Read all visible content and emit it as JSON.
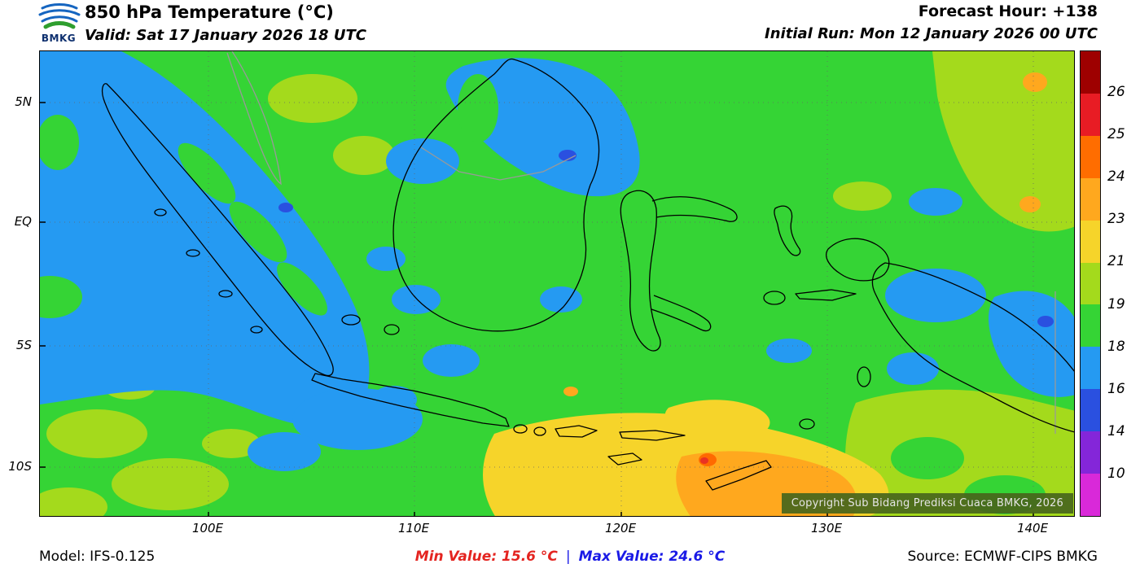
{
  "header": {
    "logo": "BMKG",
    "title": "850 hPa Temperature (°C)",
    "valid": "Valid: Sat 17 January 2026 18 UTC",
    "forecast_hour": "Forecast Hour: +138",
    "initial_run": "Initial Run: Mon 12 January 2026 00 UTC"
  },
  "map": {
    "lat_labels": [
      "5N",
      "EQ",
      "5S",
      "10S"
    ],
    "lon_labels": [
      "100E",
      "110E",
      "120E",
      "130E",
      "140E"
    ],
    "copyright": "Copyright Sub Bidang Prediksi Cuaca BMKG, 2026"
  },
  "colorbar": {
    "unit": "°C",
    "tick_labels": [
      "26",
      "25",
      "24",
      "23",
      "21",
      "19",
      "18",
      "16",
      "14",
      "10"
    ],
    "segment_colors": [
      "#9e0000",
      "#e81c24",
      "#ff6d00",
      "#ffa81e",
      "#f6d42a",
      "#a4da1c",
      "#35d435",
      "#259af2",
      "#2a50e0",
      "#8426d9",
      "#d929d9"
    ]
  },
  "footer": {
    "model": "Model: IFS-0.125",
    "min_value": "Min Value: 15.6 °C",
    "separator": "|",
    "max_value": "Max Value: 24.6 °C",
    "source": "Source: ECMWF-CIPS BMKG"
  }
}
